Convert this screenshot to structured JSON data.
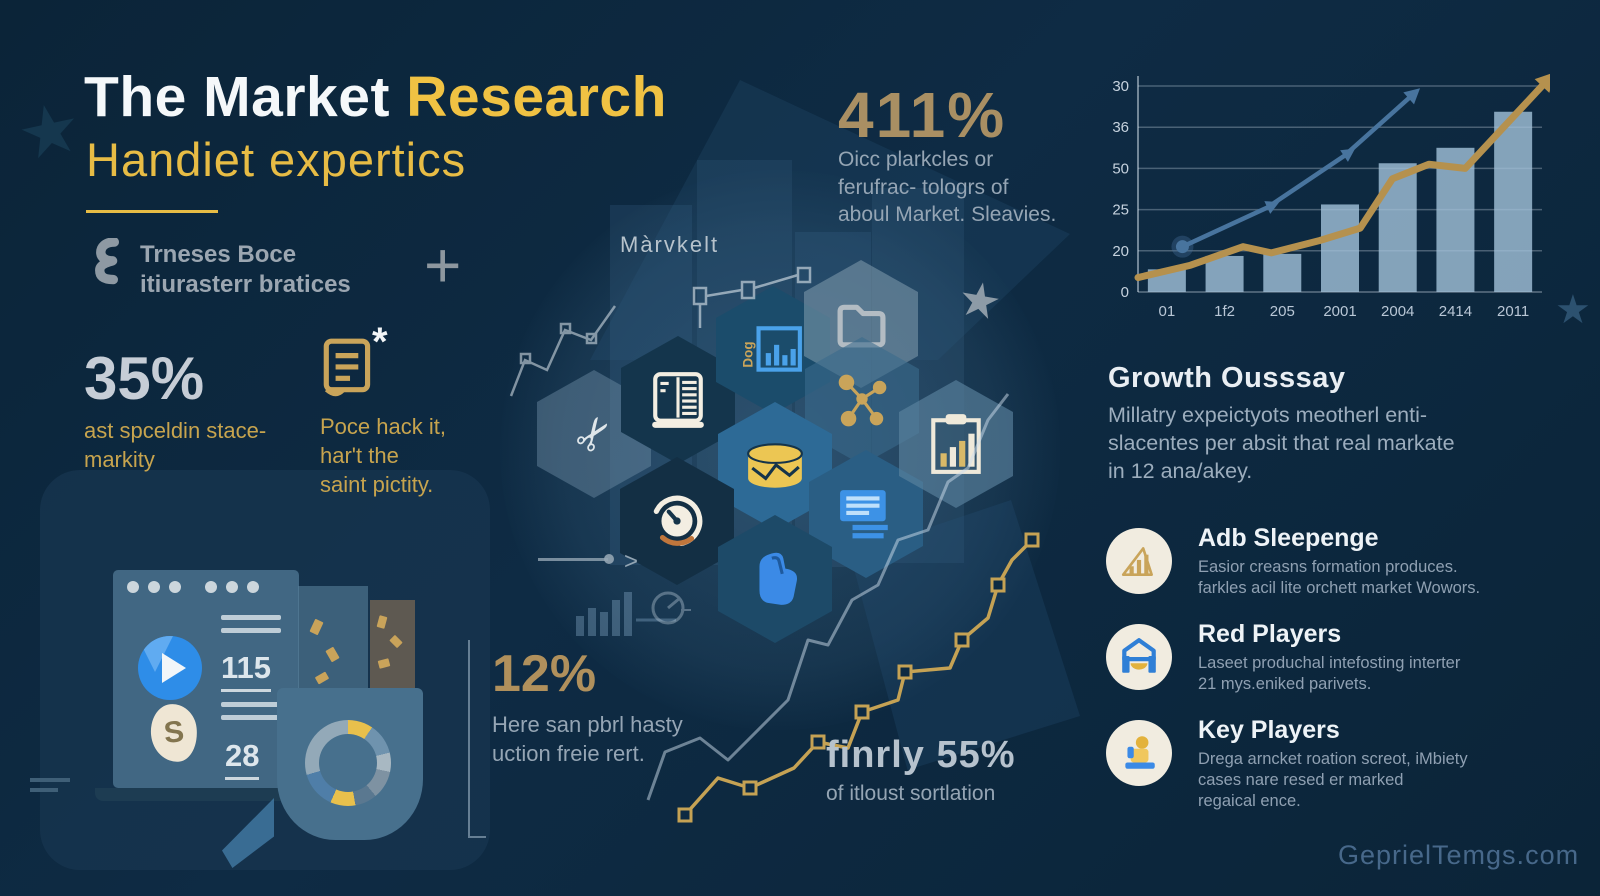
{
  "colors": {
    "background": "#0c2840",
    "gold_bright": "#f0c243",
    "gold_muted": "#a98f63",
    "gold_text": "#c7a44e",
    "silver": "#c6cdd6",
    "gray_text": "#95a5b4",
    "bar_fill": "#a3c2da",
    "line_gold": "#b5914e",
    "line_blue": "#48749e",
    "cream_circle": "#f1ece0"
  },
  "header": {
    "title_white": "The Market",
    "title_gold": "Research",
    "subtitle": "Handiet expertics",
    "brand": [
      "Trneses Boce",
      "itiurasterr bratices"
    ],
    "plus_sign": "+",
    "marvkelt_label": "Màrvkelt"
  },
  "stats": {
    "s411": {
      "value": "411%",
      "desc": [
        "Oicc plarkcles or",
        "ferufrac- tologrs of",
        "aboul Market. Sleavies."
      ]
    },
    "s35": {
      "value": "35%",
      "desc": [
        "ast spceldin stace-",
        "markity"
      ]
    },
    "poce_note": [
      "Poce hack it,",
      "har't the",
      "saint pictity."
    ],
    "s12": {
      "value": "12%",
      "desc": [
        "Here san pbrl hasty",
        "uction freie rert."
      ]
    },
    "s55": {
      "value": "finrly 55%",
      "desc": "of itloust sortlation"
    }
  },
  "growth": {
    "title": "Growth Ousssay",
    "body": [
      "Millatry expeictyots  meotherl enti-",
      "slacentes per absit that real markate",
      "in 12 ana/akey."
    ]
  },
  "players": [
    {
      "icon": "growth-bars-icon",
      "title": "Adb Sleepenge",
      "body": [
        "Easior creasns formation produces.",
        "farkles acil lite orchett market Wowors."
      ]
    },
    {
      "icon": "house-icon",
      "title": "Red Players",
      "body": [
        "Laseet produchal intefosting interter",
        "21 mys.eniked parivets."
      ]
    },
    {
      "icon": "person-icon",
      "title": "Key Players",
      "body": [
        "Drega arncket roation screot, iMbiety",
        "cases nare resed er marked",
        "regaical ence."
      ]
    }
  ],
  "hexgrid": {
    "icons": [
      "scissors-icon",
      "server-icon",
      "bar-chart-doc-icon",
      "folder-icon",
      "network-icon",
      "database-icon",
      "gauge-icon",
      "documents-icon",
      "hand-icon",
      "clipboard-chart-icon"
    ],
    "chart_doc_label": "Dog"
  },
  "mockup": {
    "stat_a": "115",
    "stat_b": "28",
    "letter": "S"
  },
  "watermark": "GeprielTemgs.com",
  "chart_data": [
    {
      "type": "bar",
      "title": "Top-right combo chart: bars with two rising trend lines",
      "categories": [
        "01",
        "1f2",
        "205",
        "2001",
        "2004",
        "2414",
        "2011"
      ],
      "y_tick_labels_top_to_bottom": [
        "30",
        "36",
        "50",
        "25",
        "20",
        "0"
      ],
      "values_pct_of_axis": [
        11,
        17.5,
        18.5,
        42.5,
        62.5,
        70,
        87.5
      ],
      "grid": true,
      "legend": "none",
      "series": [
        {
          "name": "gold trend line",
          "type": "line",
          "color": "#b5914e",
          "width": 7,
          "arrow_end": true,
          "start_dot": false,
          "points_pct": [
            [
              0,
              7
            ],
            [
              13,
              13
            ],
            [
              26,
              22
            ],
            [
              33,
              19
            ],
            [
              45,
              25
            ],
            [
              55,
              31
            ],
            [
              63,
              55
            ],
            [
              72,
              62
            ],
            [
              81,
              60
            ],
            [
              100,
              100
            ]
          ]
        },
        {
          "name": "blue trend line",
          "type": "line",
          "color": "#48749e",
          "width": 4.5,
          "arrow_end": true,
          "start_dot": true,
          "points_pct": [
            [
              11,
              22
            ],
            [
              32,
              41
            ],
            [
              51,
              66
            ],
            [
              67,
              94
            ]
          ]
        }
      ]
    },
    {
      "type": "pie",
      "style": "donut",
      "title": "Donut chart in bottom-left dashboard mockup",
      "segments": [
        {
          "color": "#e8c04c",
          "deg": 34
        },
        {
          "color": "#6f93ae",
          "deg": 42
        },
        {
          "color": "#a8b8c2",
          "deg": 26
        },
        {
          "color": "#7e92a2",
          "deg": 38
        },
        {
          "color": "#5a7890",
          "deg": 30
        },
        {
          "color": "#e8c04c",
          "deg": 34
        },
        {
          "color": "#4f7ea8",
          "deg": 50
        },
        {
          "color": "#93a9b8",
          "deg": 106
        }
      ]
    },
    {
      "type": "line",
      "title": "Bottom-center rising step trend lines",
      "series": [
        {
          "name": "gold step line",
          "color": "#c5a254",
          "width": 3.5,
          "marker": "open-square",
          "marker_every": 2,
          "points": [
            [
              85,
              435
            ],
            [
              118,
              398
            ],
            [
              150,
              408
            ],
            [
              194,
              388
            ],
            [
              218,
              362
            ],
            [
              248,
              368
            ],
            [
              262,
              332
            ],
            [
              298,
              320
            ],
            [
              305,
              292
            ],
            [
              350,
              288
            ],
            [
              362,
              260
            ],
            [
              388,
              238
            ],
            [
              398,
              205
            ],
            [
              412,
              180
            ],
            [
              432,
              160
            ]
          ]
        },
        {
          "name": "white faded line",
          "color": "rgba(205,222,235,0.5)",
          "width": 3,
          "marker": "none",
          "marker_every": 0,
          "points": [
            [
              48,
              420
            ],
            [
              65,
              372
            ],
            [
              100,
              358
            ],
            [
              128,
              380
            ],
            [
              188,
              320
            ],
            [
              208,
              260
            ],
            [
              228,
              265
            ],
            [
              252,
              220
            ],
            [
              278,
              205
            ],
            [
              298,
              160
            ],
            [
              328,
              150
            ],
            [
              348,
              102
            ],
            [
              368,
              88
            ],
            [
              388,
              40
            ],
            [
              408,
              14
            ]
          ]
        }
      ]
    }
  ]
}
